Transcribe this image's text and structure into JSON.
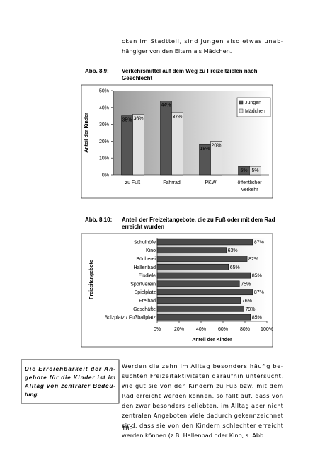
{
  "paragraph_top": {
    "lines": [
      "cken im Stadtteil, sind Jungen also etwas unab-",
      "hängiger von den Eltern als Mädchen."
    ]
  },
  "chart_data": [
    {
      "type": "bar",
      "caption_label": "Abb. 8.9:",
      "title": "Verkehrsmittel auf dem Weg zu Freizeitzielen nach Geschlecht",
      "y_label": "Anteil der Kinder",
      "categories": [
        "zu Fuß",
        "Fahrrad",
        "PKW",
        "öffentlicher Verkehr"
      ],
      "series": [
        {
          "name": "Jungen",
          "color": "#555555",
          "values": [
            35,
            44,
            18,
            5
          ],
          "value_labels": [
            "35%",
            "44%",
            "18%",
            "5%"
          ]
        },
        {
          "name": "Mädchen",
          "color": "#e2e2e2",
          "values": [
            36,
            37,
            20,
            5
          ],
          "value_labels": [
            "36%",
            "37%",
            "20%",
            "5%"
          ]
        }
      ],
      "ylim": [
        0,
        50
      ],
      "yticks": [
        {
          "value": 0,
          "label": "0%"
        },
        {
          "value": 10,
          "label": "10%"
        },
        {
          "value": 20,
          "label": "20%"
        },
        {
          "value": 30,
          "label": "30%"
        },
        {
          "value": 40,
          "label": "40%"
        },
        {
          "value": 50,
          "label": "50%"
        }
      ],
      "legend": "top-right"
    },
    {
      "type": "barh",
      "caption_label": "Abb. 8.10:",
      "title": "Anteil der Freizeitangebote, die zu Fuß oder mit dem Rad erreicht wurden",
      "x_label": "Anteil der Kinder",
      "y_label": "Freizeitangebote",
      "categories": [
        "Schulhöfe",
        "Kino",
        "Bücherei",
        "Hallenbad",
        "Eisdiele",
        "Sportverein",
        "Spielplatz",
        "Freibad",
        "Geschäfte",
        "Bolzplatz / Fußballplatz"
      ],
      "values": [
        87,
        63,
        82,
        65,
        85,
        75,
        87,
        76,
        79,
        85
      ],
      "value_labels": [
        "87%",
        "63%",
        "82%",
        "65%",
        "85%",
        "75%",
        "87%",
        "76%",
        "79%",
        "85%"
      ],
      "color": "#4a4a4a",
      "xlim": [
        0,
        100
      ],
      "xticks": [
        {
          "value": 0,
          "label": "0%"
        },
        {
          "value": 20,
          "label": "20%"
        },
        {
          "value": 40,
          "label": "40%"
        },
        {
          "value": 60,
          "label": "60%"
        },
        {
          "value": 80,
          "label": "80%"
        },
        {
          "value": 100,
          "label": "100%"
        }
      ]
    }
  ],
  "sidebar": {
    "lines": [
      "Die Erreichbarkeit der An-",
      "gebote für die Kinder ist im",
      "Alltag von zentraler Bedeu-",
      "tung."
    ]
  },
  "paragraph_bottom": {
    "lines": [
      "Werden die zehn im Alltag besonders häufig be-",
      "suchten Freizeitaktivitäten daraufhin untersucht,",
      "wie gut sie von den Kindern zu Fuß bzw. mit dem",
      "Rad erreicht werden können, so fällt auf, dass von",
      "den zwar besonders beliebten, im Alltag aber nicht",
      "zentralen Angeboten viele dadurch gekennzeichnet",
      "sind, dass sie von den Kindern schlechter erreicht",
      "werden können (z.B. Hallenbad oder Kino, s. Abb."
    ]
  },
  "page_number": "188"
}
